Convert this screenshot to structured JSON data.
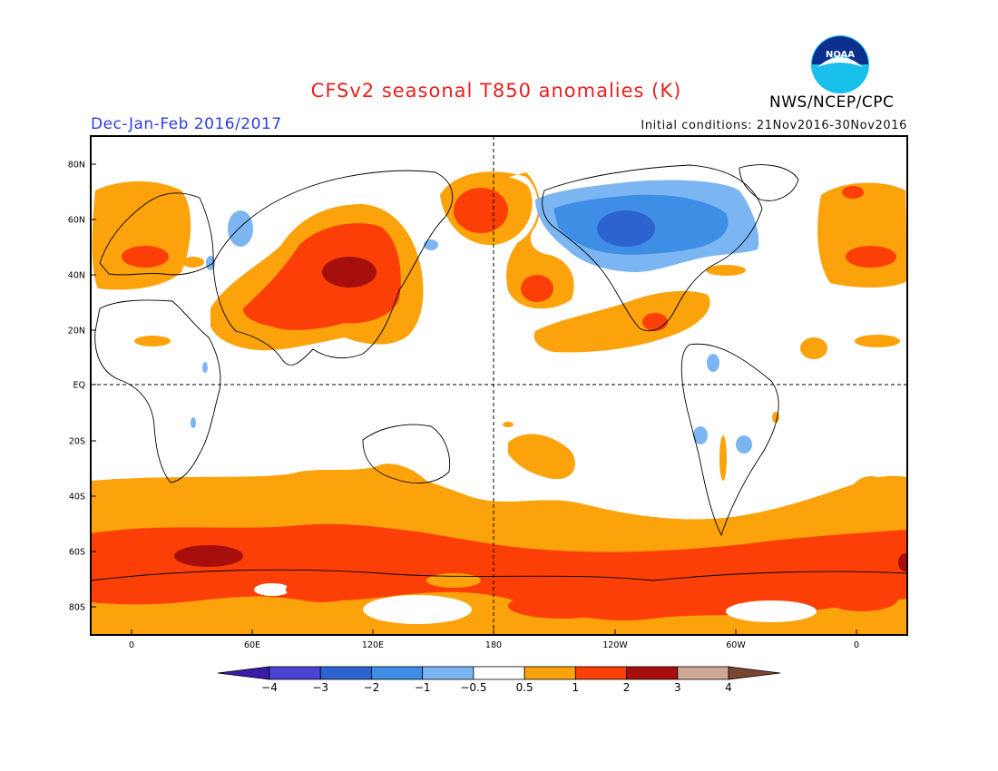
{
  "header": {
    "title": "CFSv2 seasonal T850 anomalies (K)",
    "season": "Dec-Jan-Feb 2016/2017",
    "initial_conditions": "Initial conditions: 21Nov2016-30Nov2016",
    "agency": "NWS/NCEP/CPC",
    "logo_text": "NOAA"
  },
  "map": {
    "projection": "cylindrical equidistant",
    "lon_ticks": [
      "0",
      "60E",
      "120E",
      "180",
      "120W",
      "60W",
      "0"
    ],
    "lat_ticks": [
      "80N",
      "60N",
      "40N",
      "20N",
      "EQ",
      "20S",
      "40S",
      "60S",
      "80S"
    ],
    "dashed_reference_lines": [
      "EQ",
      "180"
    ],
    "colors": {
      "lt_-3": "#3a1ba8",
      "-3_-2": "#2c63cf",
      "-2_-1": "#3f8ee6",
      "-1_-0.5": "#7cb6f2",
      "-0.5_0.5": "#ffffff",
      "0.5_1": "#fca20a",
      "1_2": "#fb3f06",
      "2_3": "#a60f0c",
      "3_4": "#cfa795",
      "gt_4": "#7a4632"
    }
  },
  "colorbar": {
    "labels": [
      "−4",
      "−3",
      "−2",
      "−1",
      "−0.5",
      "0.5",
      "1",
      "2",
      "3",
      "4"
    ],
    "colors": [
      "#3a1ba8",
      "#4a44d2",
      "#2c63cf",
      "#3f8ee6",
      "#7cb6f2",
      "#ffffff",
      "#fca20a",
      "#fb3f06",
      "#a60f0c",
      "#cfa795",
      "#7a4632"
    ]
  }
}
